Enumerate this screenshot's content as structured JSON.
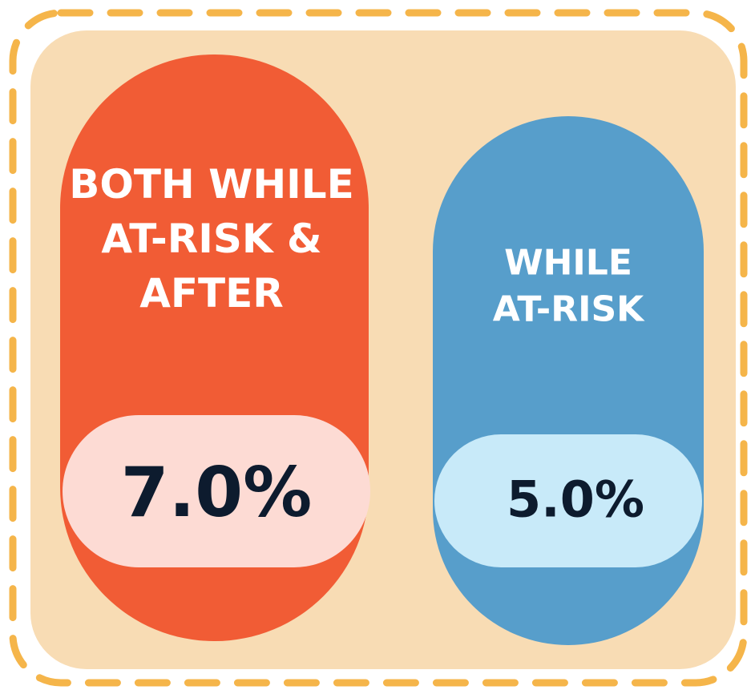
{
  "items": [
    {
      "label_lines": [
        "BOTH WHILE",
        "AT-RISK &",
        "AFTER"
      ],
      "value": "7.0%"
    },
    {
      "label_lines": [
        "WHILE",
        "AT-RISK"
      ],
      "value": "5.0%"
    }
  ]
}
